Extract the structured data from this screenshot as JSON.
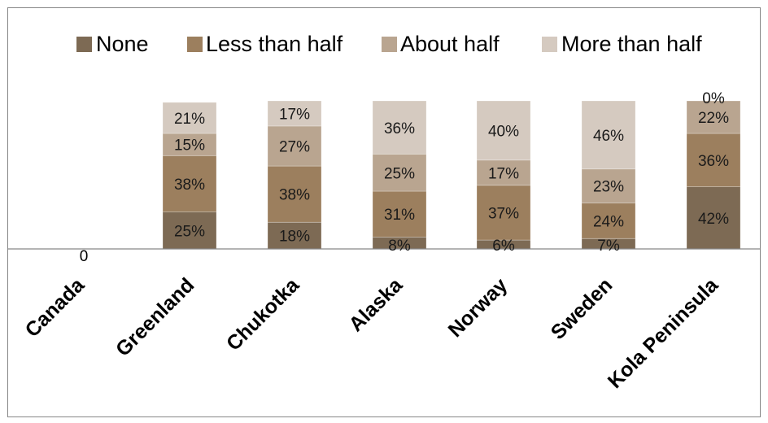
{
  "chart_data": {
    "type": "bar",
    "stacked": true,
    "categories": [
      "Canada",
      "Greenland",
      "Chukotka",
      "Alaska",
      "Norway",
      "Sweden",
      "Kola Peninsula"
    ],
    "series": [
      {
        "name": "None",
        "color": "#7d6a54",
        "values": [
          0,
          25,
          18,
          8,
          6,
          7,
          42
        ],
        "labels": [
          "",
          "25%",
          "18%",
          "8%",
          "6%",
          "7%",
          "42%"
        ]
      },
      {
        "name": "Less than half",
        "color": "#9c7f5e",
        "values": [
          0,
          38,
          38,
          31,
          37,
          24,
          36
        ],
        "labels": [
          "",
          "38%",
          "38%",
          "31%",
          "37%",
          "24%",
          "36%"
        ]
      },
      {
        "name": "About half",
        "color": "#b9a590",
        "values": [
          0,
          15,
          27,
          25,
          17,
          23,
          22
        ],
        "labels": [
          "",
          "15%",
          "27%",
          "25%",
          "17%",
          "23%",
          "22%"
        ]
      },
      {
        "name": "More than half",
        "color": "#d5cac0",
        "values": [
          0,
          21,
          17,
          36,
          40,
          46,
          0
        ],
        "labels": [
          "",
          "21%",
          "17%",
          "36%",
          "40%",
          "46%",
          "0%"
        ]
      }
    ],
    "zero_label": "0",
    "ylim": [
      0,
      100
    ],
    "legend": "top",
    "grid": false
  }
}
